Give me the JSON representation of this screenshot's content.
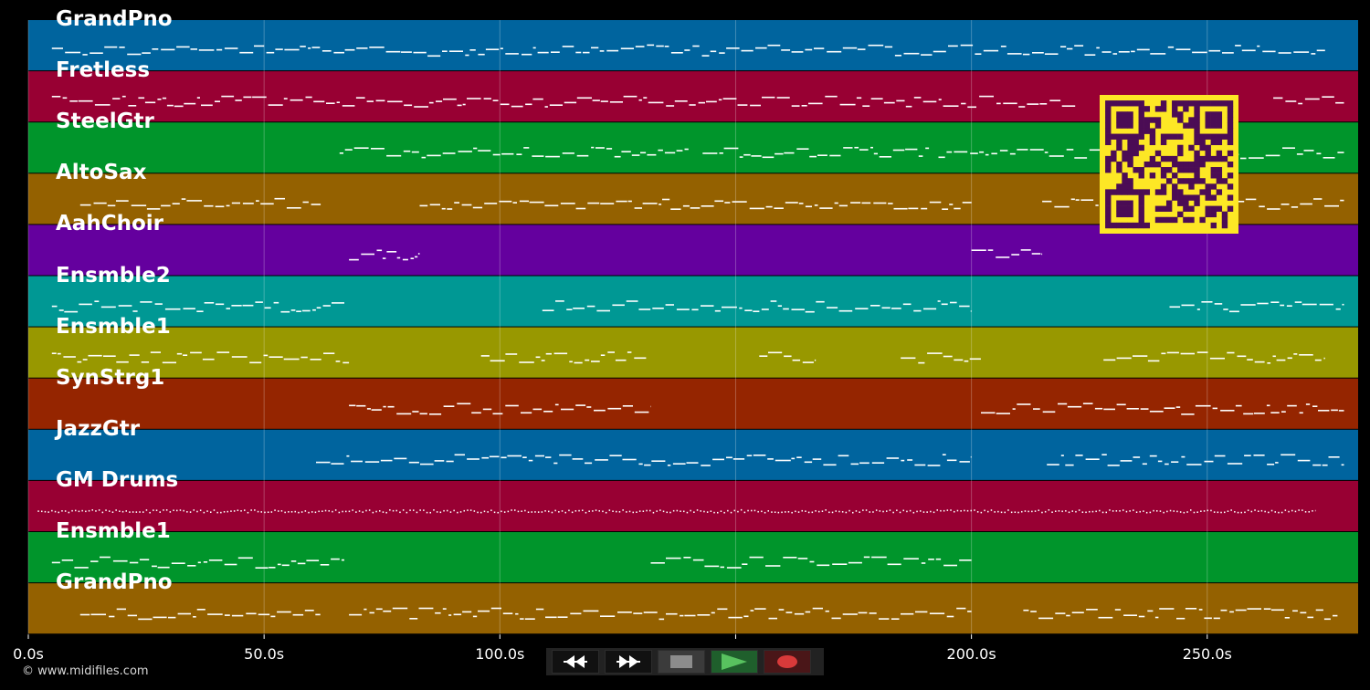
{
  "time_axis": {
    "min_seconds": 0,
    "max_seconds": 282,
    "ticks": [
      {
        "seconds": 0,
        "label": "0.0s"
      },
      {
        "seconds": 50,
        "label": "50.0s"
      },
      {
        "seconds": 100,
        "label": "100.0s"
      },
      {
        "seconds": 150,
        "label": "150.0s"
      },
      {
        "seconds": 200,
        "label": "200.0s"
      },
      {
        "seconds": 250,
        "label": "250.0s"
      }
    ]
  },
  "tracks": [
    {
      "name": "GrandPno",
      "color": "#00649e",
      "note_regions": [
        [
          5,
          275
        ]
      ]
    },
    {
      "name": "Fretless",
      "color": "#980033",
      "note_regions": [
        [
          5,
          85
        ],
        [
          85,
          222
        ],
        [
          264,
          279
        ]
      ]
    },
    {
      "name": "SteelGtr",
      "color": "#00952b",
      "note_regions": [
        [
          66,
          140
        ],
        [
          143,
          191
        ],
        [
          193,
          279
        ]
      ]
    },
    {
      "name": "AltoSax",
      "color": "#946100",
      "note_regions": [
        [
          11,
          62
        ],
        [
          83,
          200
        ],
        [
          215,
          279
        ]
      ]
    },
    {
      "name": "AahChoir",
      "color": "#64009e",
      "note_regions": [
        [
          68,
          83
        ],
        [
          200,
          215
        ]
      ]
    },
    {
      "name": "Ensmble2",
      "color": "#009894",
      "note_regions": [
        [
          5,
          67
        ],
        [
          109,
          200
        ],
        [
          242,
          279
        ]
      ]
    },
    {
      "name": "Ensmble1",
      "color": "#989800",
      "note_regions": [
        [
          5,
          68
        ],
        [
          96,
          131
        ],
        [
          155,
          167
        ],
        [
          185,
          202
        ],
        [
          228,
          275
        ]
      ]
    },
    {
      "name": "SynStrg1",
      "color": "#952500",
      "note_regions": [
        [
          68,
          132
        ],
        [
          202,
          279
        ]
      ]
    },
    {
      "name": "JazzGtr",
      "color": "#00649e",
      "note_regions": [
        [
          61,
          200
        ],
        [
          216,
          279
        ]
      ]
    },
    {
      "name": "GM Drums",
      "color": "#980033",
      "note_regions": [
        [
          2,
          273
        ]
      ]
    },
    {
      "name": "Ensmble1",
      "color": "#00952b",
      "note_regions": [
        [
          5,
          67
        ],
        [
          132,
          200
        ]
      ]
    },
    {
      "name": "GrandPno",
      "color": "#946100",
      "note_regions": [
        [
          11,
          62
        ],
        [
          68,
          200
        ],
        [
          211,
          278
        ]
      ]
    }
  ],
  "overlay": {
    "qr_name": "qr-code",
    "qr_color": "#fde725",
    "qr_dark": "#4b0c55"
  },
  "footer": {
    "copyright": "© www.midifiles.com"
  },
  "transport": {
    "buttons": [
      {
        "name": "rewind-button",
        "icon": "rewind-icon"
      },
      {
        "name": "fast-forward-button",
        "icon": "fast-forward-icon"
      },
      {
        "name": "stop-button",
        "icon": "stop-icon"
      },
      {
        "name": "play-button",
        "icon": "play-icon",
        "color": "#4caf50"
      },
      {
        "name": "record-button",
        "icon": "record-icon",
        "color": "#d32f2f"
      }
    ]
  }
}
